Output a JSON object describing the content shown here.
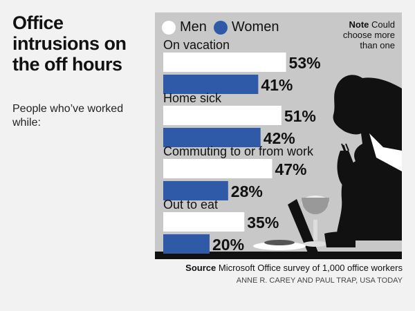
{
  "title": "Office intrusions on the off hours",
  "subtitle": "People who’ve worked while:",
  "note": {
    "label": "Note",
    "text": "Could choose more than one"
  },
  "source": {
    "label": "Source",
    "text": "Microsoft Office survey of 1,000 office workers"
  },
  "credit": "ANNE R. CAREY AND PAUL TRAP, USA TODAY",
  "colors": {
    "men": "#ffffff",
    "women": "#2e5aa8",
    "panel": "#c8c8c8",
    "silhouette": "#111111"
  },
  "chart_data": {
    "type": "bar",
    "orientation": "horizontal",
    "categories": [
      "On vacation",
      "Home sick",
      "Commuting to or from work",
      "Out to eat"
    ],
    "series": [
      {
        "name": "Men",
        "values": [
          53,
          51,
          47,
          35
        ]
      },
      {
        "name": "Women",
        "values": [
          41,
          42,
          28,
          20
        ]
      }
    ],
    "value_suffix": "%",
    "xlim": [
      0,
      100
    ],
    "grid": false,
    "legend": "top-left"
  }
}
